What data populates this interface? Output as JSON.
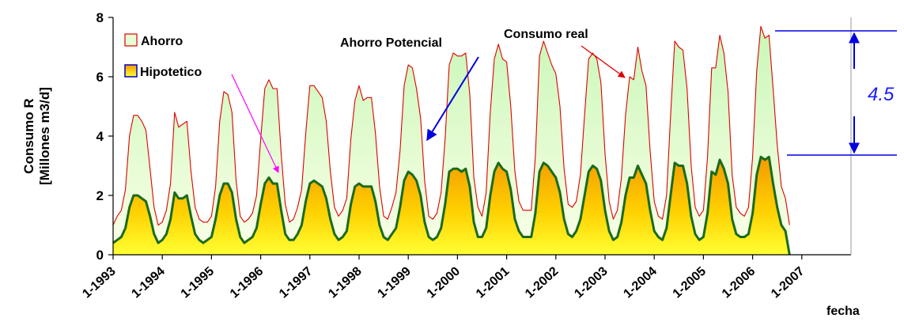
{
  "chart_data": {
    "type": "area",
    "xlabel": "fecha",
    "ylabel_line1": "Consumo R",
    "ylabel_line2": "[Millones m3/d]",
    "ylim": [
      0,
      8
    ],
    "yticks": [
      "0",
      "2",
      "4",
      "6",
      "8"
    ],
    "xticks": [
      "1-1993",
      "1-1994",
      "1-1995",
      "1-1996",
      "1-1997",
      "1-1998",
      "1-1999",
      "1-2000",
      "1-2001",
      "1-2002",
      "1-2003",
      "1-2004",
      "1-2005",
      "1-2006",
      "1-2007"
    ],
    "x_start": "1993-01",
    "x_end": "2007-12",
    "grid": false,
    "legend_position": "top-left",
    "legend": [
      {
        "name": "Ahorro",
        "color": "#e00000",
        "fill": "#e6ffd6"
      },
      {
        "name": "Hipotetico",
        "color": "#1a6b1a",
        "fill": "#ffc000"
      }
    ],
    "annotations": {
      "ahorro_potencial": "Ahorro Potencial",
      "consumo_real": "Consumo real",
      "gap_value": "4.5"
    },
    "series": [
      {
        "name": "Ahorro",
        "values": [
          1.0,
          1.3,
          1.5,
          2.2,
          4.0,
          4.7,
          4.7,
          4.5,
          4.2,
          2.9,
          1.6,
          1.0,
          1.1,
          1.5,
          2.4,
          4.8,
          4.3,
          4.4,
          4.5,
          2.8,
          1.6,
          1.2,
          1.1,
          1.1,
          1.3,
          2.3,
          4.5,
          5.5,
          5.4,
          4.8,
          2.5,
          1.3,
          1.1,
          1.2,
          1.4,
          2.0,
          3.9,
          5.6,
          5.9,
          5.6,
          5.6,
          3.4,
          1.7,
          1.1,
          1.2,
          1.6,
          2.2,
          4.1,
          5.7,
          5.7,
          5.5,
          5.3,
          4.5,
          2.8,
          1.6,
          1.3,
          1.5,
          1.9,
          3.9,
          5.2,
          5.7,
          5.2,
          5.3,
          5.3,
          4.1,
          2.3,
          1.3,
          1.2,
          1.6,
          2.1,
          3.5,
          5.7,
          6.4,
          6.3,
          5.6,
          4.6,
          2.5,
          1.3,
          1.2,
          1.4,
          2.1,
          3.9,
          6.4,
          6.8,
          6.7,
          6.7,
          6.8,
          5.4,
          2.6,
          1.6,
          1.3,
          2.1,
          4.8,
          6.6,
          7.1,
          6.6,
          6.5,
          5.0,
          2.8,
          1.8,
          1.5,
          1.5,
          1.5,
          3.3,
          6.7,
          7.2,
          6.8,
          6.4,
          6.1,
          5.0,
          2.9,
          1.7,
          1.6,
          1.8,
          2.7,
          4.7,
          6.6,
          6.8,
          6.6,
          5.8,
          3.4,
          1.8,
          1.2,
          1.5,
          2.6,
          4.7,
          6.0,
          5.9,
          7.0,
          6.2,
          5.7,
          3.5,
          1.8,
          1.3,
          1.2,
          2.0,
          4.7,
          7.2,
          7.0,
          6.9,
          5.6,
          3.0,
          1.6,
          1.3,
          1.5,
          3.3,
          6.3,
          6.3,
          7.4,
          6.8,
          5.5,
          2.7,
          1.6,
          1.4,
          1.3,
          1.6,
          3.3,
          6.2,
          7.7,
          7.3,
          7.4,
          5.6,
          3.7,
          2.3,
          1.9,
          1.0
        ]
      },
      {
        "name": "Hipotetico",
        "values": [
          0.4,
          0.5,
          0.6,
          0.9,
          1.6,
          2.0,
          2.0,
          1.9,
          1.8,
          1.3,
          0.7,
          0.4,
          0.5,
          0.7,
          1.2,
          2.1,
          1.9,
          1.9,
          2.0,
          1.3,
          0.7,
          0.5,
          0.4,
          0.5,
          0.6,
          1.2,
          2.0,
          2.4,
          2.4,
          2.1,
          1.2,
          0.6,
          0.4,
          0.5,
          0.6,
          0.9,
          1.7,
          2.4,
          2.6,
          2.4,
          2.4,
          1.5,
          0.7,
          0.5,
          0.5,
          0.7,
          1.0,
          1.8,
          2.4,
          2.5,
          2.4,
          2.3,
          1.9,
          1.2,
          0.7,
          0.5,
          0.6,
          0.8,
          1.7,
          2.3,
          2.4,
          2.3,
          2.3,
          2.3,
          1.8,
          1.0,
          0.6,
          0.5,
          0.7,
          0.9,
          1.6,
          2.5,
          2.8,
          2.7,
          2.5,
          2.0,
          1.1,
          0.6,
          0.5,
          0.6,
          0.9,
          1.7,
          2.8,
          2.9,
          2.9,
          2.8,
          2.9,
          2.3,
          1.1,
          0.6,
          0.6,
          0.9,
          2.0,
          2.8,
          3.1,
          2.9,
          2.8,
          2.2,
          1.2,
          0.8,
          0.6,
          0.6,
          0.6,
          1.4,
          2.8,
          3.1,
          3.0,
          2.8,
          2.6,
          2.1,
          1.2,
          0.7,
          0.6,
          0.8,
          1.2,
          2.0,
          2.8,
          3.0,
          2.9,
          2.5,
          1.5,
          0.8,
          0.5,
          0.6,
          1.1,
          2.0,
          2.6,
          2.6,
          3.0,
          2.7,
          2.4,
          1.5,
          0.8,
          0.6,
          0.5,
          0.9,
          2.0,
          3.1,
          3.0,
          3.0,
          2.4,
          1.3,
          0.7,
          0.5,
          0.6,
          1.4,
          2.8,
          2.7,
          3.2,
          2.9,
          2.4,
          1.2,
          0.7,
          0.6,
          0.6,
          0.7,
          1.4,
          2.7,
          3.3,
          3.2,
          3.3,
          2.4,
          1.6,
          1.0,
          0.8,
          0.0
        ]
      }
    ]
  }
}
